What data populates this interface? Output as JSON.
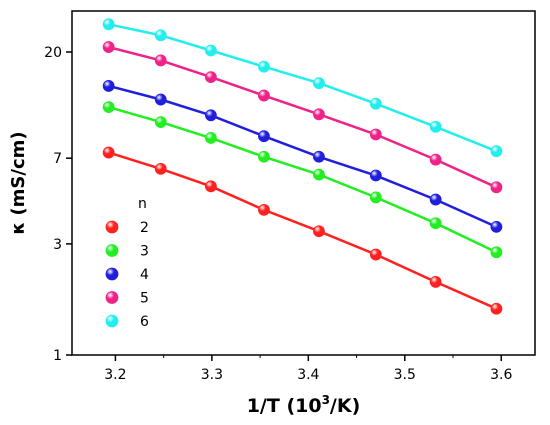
{
  "chart_data": {
    "type": "line",
    "title": "",
    "xlabel": "1/T (10",
    "xlabel_sup": "3",
    "xlabel_end": "/K)",
    "ylabel": "κ (mS/cm)",
    "y_scale": "log",
    "xlim": [
      3.155,
      3.635
    ],
    "ylim": [
      1,
      30
    ],
    "x_ticks": [
      3.2,
      3.3,
      3.4,
      3.5,
      3.6
    ],
    "x_tick_labels": [
      "3.2",
      "3.3",
      "3.4",
      "3.5",
      "3.6"
    ],
    "y_ticks": [
      1,
      3,
      7,
      20
    ],
    "y_tick_labels": [
      "1",
      "3",
      "7",
      "20"
    ],
    "grid": false,
    "legend_title": "n",
    "legend_position": "bottom-left",
    "x": [
      3.193,
      3.247,
      3.299,
      3.354,
      3.411,
      3.47,
      3.532,
      3.595
    ],
    "series": [
      {
        "name": "2",
        "color": "#ff2020",
        "values": [
          7.4,
          6.3,
          5.3,
          4.2,
          3.4,
          2.7,
          2.06,
          1.58
        ]
      },
      {
        "name": "3",
        "color": "#22ee22",
        "values": [
          11.6,
          10.0,
          8.55,
          7.1,
          5.95,
          4.75,
          3.68,
          2.76
        ]
      },
      {
        "name": "4",
        "color": "#1f1fdd",
        "values": [
          14.3,
          12.5,
          10.7,
          8.7,
          7.1,
          5.9,
          4.65,
          3.55
        ]
      },
      {
        "name": "5",
        "color": "#ee2288",
        "values": [
          21.0,
          18.4,
          15.6,
          13.0,
          10.8,
          8.85,
          6.9,
          5.25
        ]
      },
      {
        "name": "6",
        "color": "#22eeee",
        "values": [
          26.3,
          23.6,
          20.3,
          17.3,
          14.7,
          12.0,
          9.55,
          7.5
        ]
      }
    ]
  }
}
